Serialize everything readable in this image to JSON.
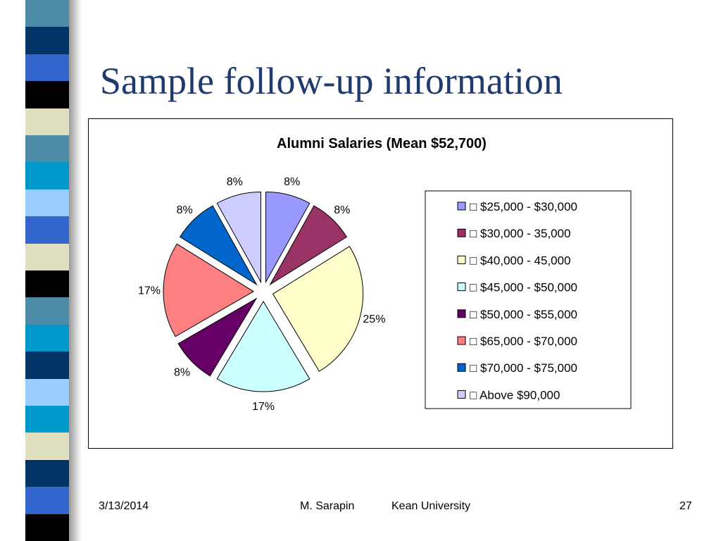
{
  "slide": {
    "title": "Sample follow-up information",
    "footer": {
      "date": "3/13/2014",
      "author": "M. Sarapin",
      "organization": "Kean  University",
      "page": "27"
    }
  },
  "chart_data": {
    "type": "pie",
    "title": "Alumni Salaries (Mean $52,700)",
    "exploded": true,
    "legend_position": "right",
    "legend_prefix": "□",
    "slices": [
      {
        "label": "$25,000 - $30,000",
        "value": 8,
        "display": "8%",
        "color": "#9999ff"
      },
      {
        "label": "$30,000 - 35,000",
        "value": 8,
        "display": "8%",
        "color": "#993366"
      },
      {
        "label": "$40,000 - 45,000",
        "value": 25,
        "display": "25%",
        "color": "#ffffcc"
      },
      {
        "label": "$45,000 - $50,000",
        "value": 17,
        "display": "17%",
        "color": "#ccffff"
      },
      {
        "label": "$50,000 - $55,000",
        "value": 8,
        "display": "8%",
        "color": "#660066"
      },
      {
        "label": "$65,000 - $70,000",
        "value": 17,
        "display": "17%",
        "color": "#ff8080"
      },
      {
        "label": "$70,000 - $75,000",
        "value": 8,
        "display": "8%",
        "color": "#0066cc"
      },
      {
        "label": "Above $90,000",
        "value": 8,
        "display": "8%",
        "color": "#ccccff"
      }
    ]
  },
  "decor": {
    "strip_colors": [
      "#4d8ca8",
      "#003366",
      "#3366cc",
      "#000000",
      "#e0e0c0",
      "#4d8ca8",
      "#0099cc",
      "#99ccff",
      "#3366cc",
      "#e0e0c0",
      "#000000",
      "#4d8ca8",
      "#0099cc",
      "#003366",
      "#99ccff",
      "#0099cc",
      "#e0e0c0",
      "#003366",
      "#3366cc",
      "#000000"
    ]
  }
}
